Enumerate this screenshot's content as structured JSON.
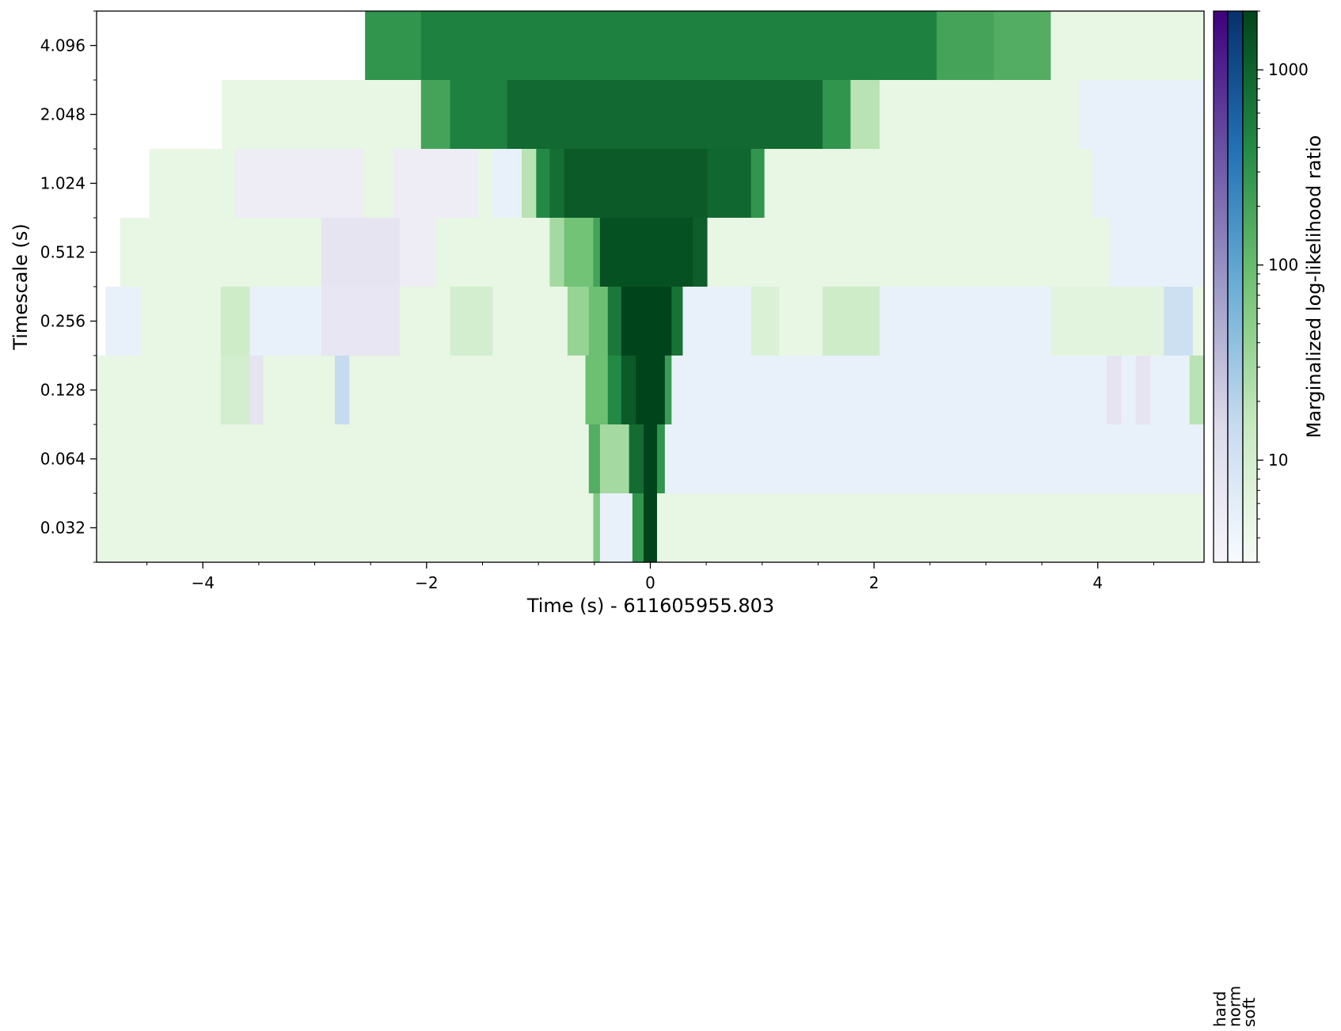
{
  "chart_data": {
    "type": "heatmap",
    "title": "",
    "xlabel": "Time (s) - 611605955.803",
    "ylabel": "Timescale (s)",
    "colorbar_label": "Marginalized log-likelihood ratio",
    "colorbar_scale": "log",
    "colorbar_ticks": [
      "10",
      "100",
      "1000"
    ],
    "colorbar_tick_values": [
      10,
      100,
      1000
    ],
    "colorbar_range": [
      3,
      2000
    ],
    "spectra": [
      "hard",
      "norm",
      "soft"
    ],
    "spectra_colors": {
      "hard": [
        "#f7f4fa",
        "#dadaeb",
        "#9e9ac8",
        "#6a51a3",
        "#3f007d"
      ],
      "norm": [
        "#f7fbff",
        "#c6dbef",
        "#6baed6",
        "#2171b5",
        "#08306b"
      ],
      "soft": [
        "#f7fcf5",
        "#c7e9c0",
        "#74c476",
        "#238b45",
        "#00441b"
      ]
    },
    "xlim": [
      -4.95,
      4.95
    ],
    "x_ticks": [
      "−4",
      "−2",
      "0",
      "2",
      "4"
    ],
    "x_tick_values": [
      -4,
      -2,
      0,
      2,
      4
    ],
    "y_ticks": [
      "0.032",
      "0.064",
      "0.128",
      "0.256",
      "0.512",
      "1.024",
      "2.048",
      "4.096"
    ],
    "y_tick_values": [
      0.032,
      0.064,
      0.128,
      0.256,
      0.512,
      1.024,
      2.048,
      4.096
    ],
    "rows": [
      {
        "timescale": 4.096,
        "segments": [
          {
            "t0": -2.55,
            "t1": -2.05,
            "s": "soft",
            "v": 300
          },
          {
            "t0": -2.05,
            "t1": 2.56,
            "s": "soft",
            "v": 500
          },
          {
            "t0": 2.56,
            "t1": 3.07,
            "s": "soft",
            "v": 200
          },
          {
            "t0": 3.07,
            "t1": 3.58,
            "s": "soft",
            "v": 150
          },
          {
            "t0": 3.58,
            "t1": 4.95,
            "s": "soft",
            "v": 5
          }
        ]
      },
      {
        "timescale": 2.048,
        "segments": [
          {
            "t0": -3.83,
            "t1": -2.05,
            "s": "soft",
            "v": 5
          },
          {
            "t0": -2.05,
            "t1": -1.79,
            "s": "soft",
            "v": 200
          },
          {
            "t0": -1.79,
            "t1": -1.28,
            "s": "soft",
            "v": 500
          },
          {
            "t0": -1.28,
            "t1": 1.54,
            "s": "soft",
            "v": 850
          },
          {
            "t0": 1.54,
            "t1": 1.79,
            "s": "soft",
            "v": 300
          },
          {
            "t0": 1.79,
            "t1": 2.05,
            "s": "soft",
            "v": 20
          },
          {
            "t0": 2.05,
            "t1": 3.83,
            "s": "soft",
            "v": 5
          },
          {
            "t0": 3.83,
            "t1": 4.95,
            "s": "norm",
            "v": 5
          }
        ]
      },
      {
        "timescale": 1.024,
        "segments": [
          {
            "t0": -4.48,
            "t1": -3.71,
            "s": "soft",
            "v": 5
          },
          {
            "t0": -3.71,
            "t1": -2.56,
            "s": "hard",
            "v": 5
          },
          {
            "t0": -2.56,
            "t1": -2.3,
            "s": "soft",
            "v": 5
          },
          {
            "t0": -2.3,
            "t1": -1.54,
            "s": "hard",
            "v": 5
          },
          {
            "t0": -1.54,
            "t1": -1.41,
            "s": "soft",
            "v": 5
          },
          {
            "t0": -1.41,
            "t1": -1.15,
            "s": "norm",
            "v": 5
          },
          {
            "t0": -1.15,
            "t1": -1.02,
            "s": "soft",
            "v": 20
          },
          {
            "t0": -1.02,
            "t1": -0.9,
            "s": "soft",
            "v": 400
          },
          {
            "t0": -0.9,
            "t1": -0.77,
            "s": "soft",
            "v": 750
          },
          {
            "t0": -0.77,
            "t1": 0.51,
            "s": "soft",
            "v": 1200
          },
          {
            "t0": 0.51,
            "t1": 0.9,
            "s": "soft",
            "v": 900
          },
          {
            "t0": 0.9,
            "t1": 1.02,
            "s": "soft",
            "v": 300
          },
          {
            "t0": 1.02,
            "t1": 3.95,
            "s": "soft",
            "v": 5
          },
          {
            "t0": 3.95,
            "t1": 4.95,
            "s": "norm",
            "v": 5
          }
        ]
      },
      {
        "timescale": 0.512,
        "segments": [
          {
            "t0": -4.74,
            "t1": -2.94,
            "s": "soft",
            "v": 5
          },
          {
            "t0": -2.94,
            "t1": -2.24,
            "s": "hard",
            "v": 8
          },
          {
            "t0": -2.24,
            "t1": -1.92,
            "s": "hard",
            "v": 5
          },
          {
            "t0": -1.92,
            "t1": -0.9,
            "s": "soft",
            "v": 5
          },
          {
            "t0": -0.9,
            "t1": -0.77,
            "s": "soft",
            "v": 30
          },
          {
            "t0": -0.77,
            "t1": -0.51,
            "s": "soft",
            "v": 80
          },
          {
            "t0": -0.51,
            "t1": -0.45,
            "s": "soft",
            "v": 200
          },
          {
            "t0": -0.45,
            "t1": 0.38,
            "s": "soft",
            "v": 1500
          },
          {
            "t0": 0.38,
            "t1": 0.51,
            "s": "soft",
            "v": 1100
          },
          {
            "t0": 0.51,
            "t1": 4.1,
            "s": "soft",
            "v": 5
          },
          {
            "t0": 4.1,
            "t1": 4.95,
            "s": "norm",
            "v": 5
          }
        ]
      },
      {
        "timescale": 0.256,
        "segments": [
          {
            "t0": -4.87,
            "t1": -4.55,
            "s": "norm",
            "v": 5
          },
          {
            "t0": -4.55,
            "t1": -3.84,
            "s": "soft",
            "v": 5
          },
          {
            "t0": -3.84,
            "t1": -3.58,
            "s": "soft",
            "v": 12
          },
          {
            "t0": -3.58,
            "t1": -2.94,
            "s": "norm",
            "v": 5
          },
          {
            "t0": -2.94,
            "t1": -2.24,
            "s": "hard",
            "v": 7
          },
          {
            "t0": -2.24,
            "t1": -1.79,
            "s": "soft",
            "v": 5
          },
          {
            "t0": -1.79,
            "t1": -1.41,
            "s": "soft",
            "v": 10
          },
          {
            "t0": -1.41,
            "t1": -0.74,
            "s": "soft",
            "v": 5
          },
          {
            "t0": -0.74,
            "t1": -0.55,
            "s": "soft",
            "v": 40
          },
          {
            "t0": -0.55,
            "t1": -0.38,
            "s": "soft",
            "v": 90
          },
          {
            "t0": -0.38,
            "t1": -0.26,
            "s": "soft",
            "v": 600
          },
          {
            "t0": -0.26,
            "t1": 0.19,
            "s": "soft",
            "v": 2000
          },
          {
            "t0": 0.19,
            "t1": 0.29,
            "s": "soft",
            "v": 700
          },
          {
            "t0": 0.29,
            "t1": 0.9,
            "s": "norm",
            "v": 5
          },
          {
            "t0": 0.9,
            "t1": 1.15,
            "s": "soft",
            "v": 8
          },
          {
            "t0": 1.15,
            "t1": 1.54,
            "s": "soft",
            "v": 5
          },
          {
            "t0": 1.54,
            "t1": 2.05,
            "s": "soft",
            "v": 12
          },
          {
            "t0": 2.05,
            "t1": 3.58,
            "s": "norm",
            "v": 5
          },
          {
            "t0": 3.58,
            "t1": 4.59,
            "s": "soft",
            "v": 6
          },
          {
            "t0": 4.59,
            "t1": 4.85,
            "s": "norm",
            "v": 12
          },
          {
            "t0": 4.85,
            "t1": 4.95,
            "s": "soft",
            "v": 5
          }
        ]
      },
      {
        "timescale": 0.128,
        "segments": [
          {
            "t0": -4.95,
            "t1": -3.84,
            "s": "soft",
            "v": 5
          },
          {
            "t0": -3.84,
            "t1": -3.58,
            "s": "soft",
            "v": 10
          },
          {
            "t0": -3.58,
            "t1": -3.46,
            "s": "hard",
            "v": 8
          },
          {
            "t0": -3.46,
            "t1": -2.82,
            "s": "soft",
            "v": 5
          },
          {
            "t0": -2.82,
            "t1": -2.69,
            "s": "norm",
            "v": 15
          },
          {
            "t0": -2.69,
            "t1": -0.58,
            "s": "soft",
            "v": 5
          },
          {
            "t0": -0.58,
            "t1": -0.38,
            "s": "soft",
            "v": 90
          },
          {
            "t0": -0.38,
            "t1": -0.26,
            "s": "soft",
            "v": 400
          },
          {
            "t0": -0.26,
            "t1": -0.13,
            "s": "soft",
            "v": 1200
          },
          {
            "t0": -0.13,
            "t1": 0.13,
            "s": "soft",
            "v": 2000
          },
          {
            "t0": 0.13,
            "t1": 0.19,
            "s": "soft",
            "v": 250
          },
          {
            "t0": 0.19,
            "t1": 4.08,
            "s": "norm",
            "v": 5
          },
          {
            "t0": 4.08,
            "t1": 4.21,
            "s": "hard",
            "v": 8
          },
          {
            "t0": 4.21,
            "t1": 4.34,
            "s": "norm",
            "v": 5
          },
          {
            "t0": 4.34,
            "t1": 4.47,
            "s": "hard",
            "v": 8
          },
          {
            "t0": 4.47,
            "t1": 4.82,
            "s": "norm",
            "v": 5
          },
          {
            "t0": 4.82,
            "t1": 4.95,
            "s": "soft",
            "v": 20
          }
        ]
      },
      {
        "timescale": 0.064,
        "segments": [
          {
            "t0": -4.95,
            "t1": -0.55,
            "s": "soft",
            "v": 5
          },
          {
            "t0": -0.55,
            "t1": -0.45,
            "s": "soft",
            "v": 150
          },
          {
            "t0": -0.45,
            "t1": -0.19,
            "s": "soft",
            "v": 30
          },
          {
            "t0": -0.19,
            "t1": -0.06,
            "s": "soft",
            "v": 800
          },
          {
            "t0": -0.06,
            "t1": 0.06,
            "s": "soft",
            "v": 2000
          },
          {
            "t0": 0.06,
            "t1": 0.13,
            "s": "soft",
            "v": 300
          },
          {
            "t0": 0.13,
            "t1": 4.95,
            "s": "norm",
            "v": 5
          }
        ]
      },
      {
        "timescale": 0.032,
        "segments": [
          {
            "t0": -4.95,
            "t1": -0.51,
            "s": "soft",
            "v": 5
          },
          {
            "t0": -0.51,
            "t1": -0.45,
            "s": "soft",
            "v": 60
          },
          {
            "t0": -0.45,
            "t1": -0.16,
            "s": "norm",
            "v": 5
          },
          {
            "t0": -0.16,
            "t1": -0.06,
            "s": "soft",
            "v": 300
          },
          {
            "t0": -0.06,
            "t1": 0.06,
            "s": "soft",
            "v": 2000
          },
          {
            "t0": 0.06,
            "t1": 4.95,
            "s": "soft",
            "v": 5
          }
        ]
      }
    ]
  }
}
